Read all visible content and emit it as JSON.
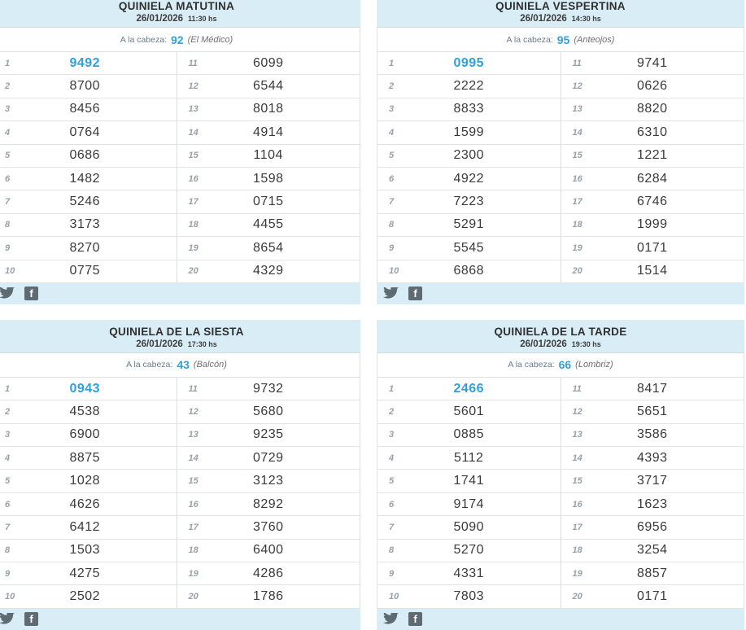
{
  "colors": {
    "band": "#d9edf7",
    "accent": "#31a0d8",
    "icon_gray": "#5e6b73"
  },
  "footer": {
    "icons": [
      {
        "name": "twitter-icon"
      },
      {
        "name": "facebook-icon"
      }
    ],
    "facebook_glyph": "f"
  },
  "panels": [
    {
      "id": "matutina",
      "title": "QUINIELA MATUTINA",
      "date": "26/01/2026",
      "time": "11:30 hs",
      "cabeza_label": "A la cabeza:",
      "cabeza_number": "92",
      "cabeza_name": "(El Médico)",
      "rows": [
        {
          "pos": "1",
          "value": "9492"
        },
        {
          "pos": "2",
          "value": "8700"
        },
        {
          "pos": "3",
          "value": "8456"
        },
        {
          "pos": "4",
          "value": "0764"
        },
        {
          "pos": "5",
          "value": "0686"
        },
        {
          "pos": "6",
          "value": "1482"
        },
        {
          "pos": "7",
          "value": "5246"
        },
        {
          "pos": "8",
          "value": "3173"
        },
        {
          "pos": "9",
          "value": "8270"
        },
        {
          "pos": "10",
          "value": "0775"
        },
        {
          "pos": "11",
          "value": "6099"
        },
        {
          "pos": "12",
          "value": "6544"
        },
        {
          "pos": "13",
          "value": "8018"
        },
        {
          "pos": "14",
          "value": "4914"
        },
        {
          "pos": "15",
          "value": "1104"
        },
        {
          "pos": "16",
          "value": "1598"
        },
        {
          "pos": "17",
          "value": "0715"
        },
        {
          "pos": "18",
          "value": "4455"
        },
        {
          "pos": "19",
          "value": "8654"
        },
        {
          "pos": "20",
          "value": "4329"
        }
      ]
    },
    {
      "id": "vespertina",
      "title": "QUINIELA VESPERTINA",
      "date": "26/01/2026",
      "time": "14:30 hs",
      "cabeza_label": "A la cabeza:",
      "cabeza_number": "95",
      "cabeza_name": "(Anteojos)",
      "rows": [
        {
          "pos": "1",
          "value": "0995"
        },
        {
          "pos": "2",
          "value": "2222"
        },
        {
          "pos": "3",
          "value": "8833"
        },
        {
          "pos": "4",
          "value": "1599"
        },
        {
          "pos": "5",
          "value": "2300"
        },
        {
          "pos": "6",
          "value": "4922"
        },
        {
          "pos": "7",
          "value": "7223"
        },
        {
          "pos": "8",
          "value": "5291"
        },
        {
          "pos": "9",
          "value": "5545"
        },
        {
          "pos": "10",
          "value": "6868"
        },
        {
          "pos": "11",
          "value": "9741"
        },
        {
          "pos": "12",
          "value": "0626"
        },
        {
          "pos": "13",
          "value": "8820"
        },
        {
          "pos": "14",
          "value": "6310"
        },
        {
          "pos": "15",
          "value": "1221"
        },
        {
          "pos": "16",
          "value": "6284"
        },
        {
          "pos": "17",
          "value": "6746"
        },
        {
          "pos": "18",
          "value": "1999"
        },
        {
          "pos": "19",
          "value": "0171"
        },
        {
          "pos": "20",
          "value": "1514"
        }
      ]
    },
    {
      "id": "siesta",
      "title": "QUINIELA DE LA SIESTA",
      "date": "26/01/2026",
      "time": "17:30 hs",
      "cabeza_label": "A la cabeza:",
      "cabeza_number": "43",
      "cabeza_name": "(Balcón)",
      "rows": [
        {
          "pos": "1",
          "value": "0943"
        },
        {
          "pos": "2",
          "value": "4538"
        },
        {
          "pos": "3",
          "value": "6900"
        },
        {
          "pos": "4",
          "value": "8875"
        },
        {
          "pos": "5",
          "value": "1028"
        },
        {
          "pos": "6",
          "value": "4626"
        },
        {
          "pos": "7",
          "value": "6412"
        },
        {
          "pos": "8",
          "value": "1503"
        },
        {
          "pos": "9",
          "value": "4275"
        },
        {
          "pos": "10",
          "value": "2502"
        },
        {
          "pos": "11",
          "value": "9732"
        },
        {
          "pos": "12",
          "value": "5680"
        },
        {
          "pos": "13",
          "value": "9235"
        },
        {
          "pos": "14",
          "value": "0729"
        },
        {
          "pos": "15",
          "value": "3123"
        },
        {
          "pos": "16",
          "value": "8292"
        },
        {
          "pos": "17",
          "value": "3760"
        },
        {
          "pos": "18",
          "value": "6400"
        },
        {
          "pos": "19",
          "value": "4286"
        },
        {
          "pos": "20",
          "value": "1786"
        }
      ]
    },
    {
      "id": "tarde",
      "title": "QUINIELA DE LA TARDE",
      "date": "26/01/2026",
      "time": "19:30 hs",
      "cabeza_label": "A la cabeza:",
      "cabeza_number": "66",
      "cabeza_name": "(Lombriz)",
      "rows": [
        {
          "pos": "1",
          "value": "2466"
        },
        {
          "pos": "2",
          "value": "5601"
        },
        {
          "pos": "3",
          "value": "0885"
        },
        {
          "pos": "4",
          "value": "5112"
        },
        {
          "pos": "5",
          "value": "1741"
        },
        {
          "pos": "6",
          "value": "9174"
        },
        {
          "pos": "7",
          "value": "5090"
        },
        {
          "pos": "8",
          "value": "5270"
        },
        {
          "pos": "9",
          "value": "4331"
        },
        {
          "pos": "10",
          "value": "7803"
        },
        {
          "pos": "11",
          "value": "8417"
        },
        {
          "pos": "12",
          "value": "5651"
        },
        {
          "pos": "13",
          "value": "3586"
        },
        {
          "pos": "14",
          "value": "4393"
        },
        {
          "pos": "15",
          "value": "3717"
        },
        {
          "pos": "16",
          "value": "1623"
        },
        {
          "pos": "17",
          "value": "6956"
        },
        {
          "pos": "18",
          "value": "3254"
        },
        {
          "pos": "19",
          "value": "8857"
        },
        {
          "pos": "20",
          "value": "0171"
        }
      ]
    }
  ]
}
